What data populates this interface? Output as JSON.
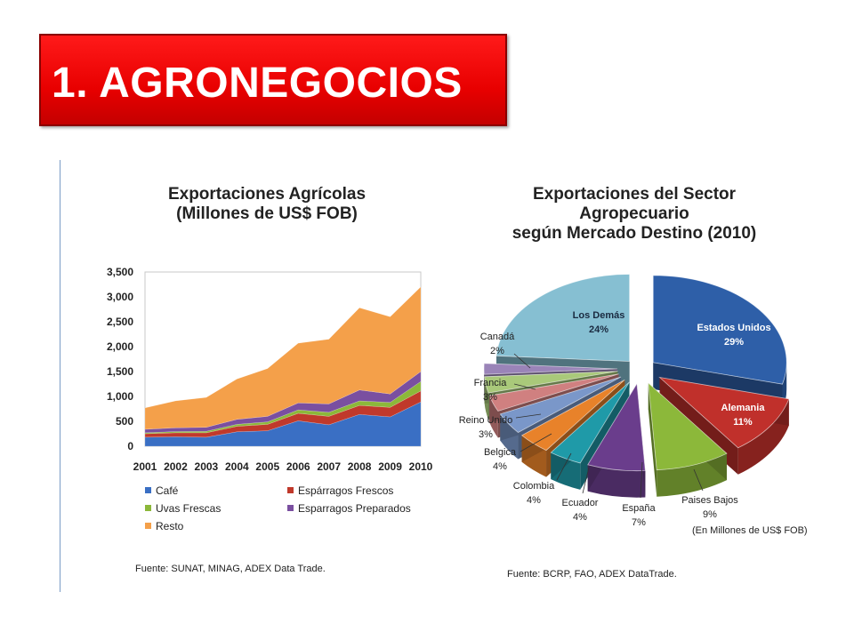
{
  "slide": {
    "title": "1. AGRONEGOCIOS"
  },
  "colors": {
    "title_bg": "#e60000",
    "cafe": "#3a6fc4",
    "esparragos_frescos": "#c0392b",
    "uvas_frescas": "#8cb83a",
    "esparragos_preparados": "#7a4fa0",
    "resto": "#f4a04a"
  },
  "area_chart": {
    "title_line1": "Exportaciones Agrícolas",
    "title_line2": "(Millones de US$ FOB)",
    "source": "Fuente: SUNAT, MINAG, ADEX Data Trade."
  },
  "pie_chart": {
    "title_line1": "Exportaciones del Sector",
    "title_line2": "Agropecuario",
    "title_line3": "según Mercado Destino (2010)",
    "note": "(En Millones de US$ FOB)",
    "source": "Fuente: BCRP, FAO, ADEX DataTrade."
  },
  "chart_data": [
    {
      "type": "area",
      "stacked": true,
      "title": "Exportaciones Agrícolas (Millones de US$ FOB)",
      "categories": [
        "2001",
        "2002",
        "2003",
        "2004",
        "2005",
        "2006",
        "2007",
        "2008",
        "2009",
        "2010"
      ],
      "y_ticks": [
        "0",
        "500",
        "1,000",
        "1,500",
        "2,000",
        "2,500",
        "3,000",
        "3,500"
      ],
      "ylim": [
        0,
        3500
      ],
      "grid": false,
      "legend_position": "bottom",
      "series": [
        {
          "name": "Café",
          "color": "#3a6fc4",
          "values": [
            180,
            190,
            180,
            290,
            310,
            510,
            430,
            640,
            590,
            890
          ]
        },
        {
          "name": "Espárragos Frescos",
          "color": "#c0392b",
          "values": [
            70,
            80,
            90,
            110,
            130,
            150,
            170,
            180,
            190,
            220
          ]
        },
        {
          "name": "Uvas Frescas",
          "color": "#8cb83a",
          "values": [
            20,
            25,
            30,
            40,
            50,
            70,
            80,
            90,
            100,
            190
          ]
        },
        {
          "name": "Esparragos Preparados",
          "color": "#7a4fa0",
          "values": [
            70,
            75,
            80,
            100,
            110,
            140,
            170,
            220,
            170,
            200
          ]
        },
        {
          "name": "Resto",
          "color": "#f4a04a",
          "values": [
            430,
            540,
            600,
            810,
            960,
            1200,
            1300,
            1650,
            1550,
            1700
          ]
        }
      ],
      "legend": [
        "Café",
        "Espárragos Frescos",
        "Uvas Frescas",
        "Esparragos Preparados",
        "Resto"
      ]
    },
    {
      "type": "pie",
      "title": "Exportaciones del Sector Agropecuario según Mercado Destino (2010)",
      "slices": [
        {
          "label": "Estados Unidos",
          "value": 29,
          "pct": "29%",
          "color": "#2e5fa8"
        },
        {
          "label": "Alemania",
          "value": 11,
          "pct": "11%",
          "color": "#c0302b"
        },
        {
          "label": "Paises Bajos",
          "value": 9,
          "pct": "9%",
          "color": "#8cb83a"
        },
        {
          "label": "España",
          "value": 7,
          "pct": "7%",
          "color": "#6a3d8c"
        },
        {
          "label": "Ecuador",
          "value": 4,
          "pct": "4%",
          "color": "#1f9aa8"
        },
        {
          "label": "Colombia",
          "value": 4,
          "pct": "4%",
          "color": "#e8822a"
        },
        {
          "label": "Belgica",
          "value": 4,
          "pct": "4%",
          "color": "#7a97c9"
        },
        {
          "label": "Reino Unido",
          "value": 3,
          "pct": "3%",
          "color": "#d08080"
        },
        {
          "label": "Francia",
          "value": 3,
          "pct": "3%",
          "color": "#a9c97a"
        },
        {
          "label": "Canadá",
          "value": 2,
          "pct": "2%",
          "color": "#9a84b8"
        },
        {
          "label": "Los Demás",
          "value": 24,
          "pct": "24%",
          "color": "#86bfd2"
        }
      ]
    }
  ]
}
